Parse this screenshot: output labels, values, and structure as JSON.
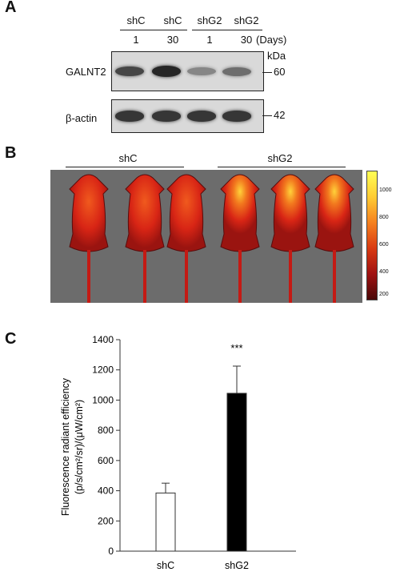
{
  "panels": {
    "A": {
      "letter": "A",
      "lane_groups": [
        "shC",
        "shC",
        "shG2",
        "shG2"
      ],
      "lane_days": [
        "1",
        "30",
        "1",
        "30"
      ],
      "days_label": "(Days)",
      "kda_label": "kDa",
      "blots": [
        {
          "protein": "GALNT2",
          "mw": "60",
          "band_intensity": [
            0.75,
            0.95,
            0.35,
            0.5
          ]
        },
        {
          "protein": "β-actin",
          "mw": "42",
          "band_intensity": [
            0.85,
            0.85,
            0.85,
            0.85
          ]
        }
      ]
    },
    "B": {
      "letter": "B",
      "group_labels": [
        "shC",
        "shG2"
      ],
      "colorbar_ticks": [
        "1000",
        "800",
        "600",
        "400",
        "200"
      ]
    },
    "C": {
      "letter": "C",
      "significance": "***"
    }
  },
  "chart_data": {
    "type": "bar",
    "categories": [
      "shC",
      "shG2"
    ],
    "values": [
      385,
      1045
    ],
    "errors": [
      65,
      180
    ],
    "bar_colors": [
      "#ffffff",
      "#000000"
    ],
    "ylabel_line1": "Fluorescence  radiant efficiency",
    "ylabel_line2": "(p/s/cm²/sr)/(μW/cm²)",
    "ylim": [
      0,
      1400
    ],
    "yticks": [
      "0",
      "200",
      "400",
      "600",
      "800",
      "1000",
      "1200",
      "1400"
    ],
    "annotation": "***",
    "grid": false
  }
}
